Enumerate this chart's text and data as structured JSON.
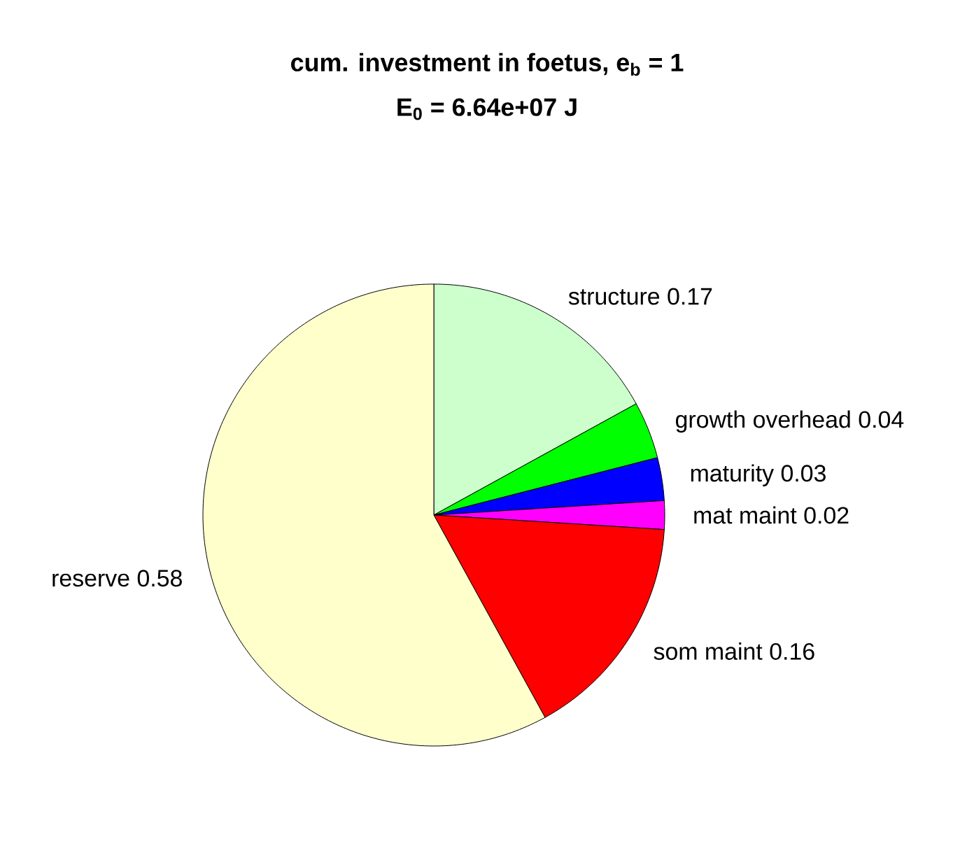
{
  "chart_data": {
    "type": "pie",
    "title": "cum. investment in foetus, e$_{b}$ = 1",
    "subtitle": "E$_{0}$ = 6.64e+07 J",
    "categories": [
      "structure",
      "growth overhead",
      "maturity",
      "mat maint",
      "som maint",
      "reserve"
    ],
    "values": [
      0.17,
      0.04,
      0.03,
      0.02,
      0.16,
      0.58
    ],
    "colors": [
      "#ccffcc",
      "#00ff00",
      "#0000ff",
      "#ff00ff",
      "#ff0000",
      "#ffffcc"
    ],
    "data_labels": true
  }
}
